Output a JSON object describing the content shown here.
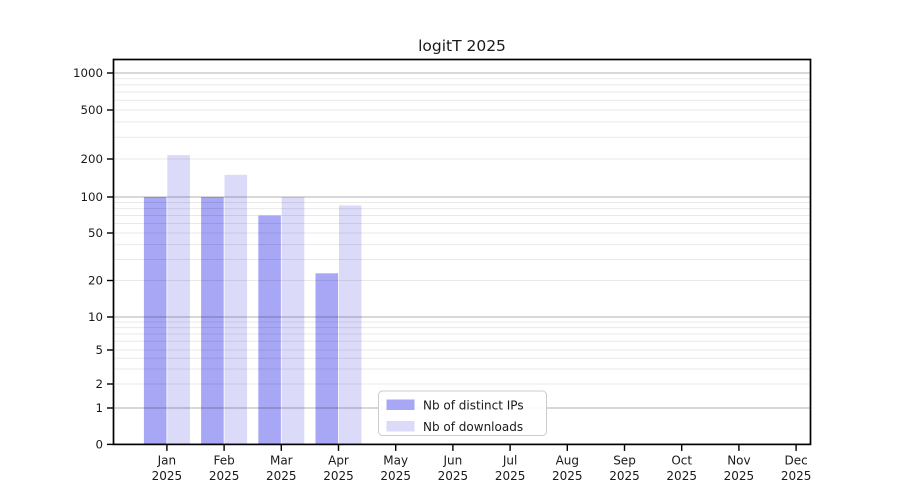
{
  "chart_data": {
    "type": "bar",
    "title": "logitT 2025",
    "year_label": "2025",
    "categories": [
      "Jan",
      "Feb",
      "Mar",
      "Apr",
      "May",
      "Jun",
      "Jul",
      "Aug",
      "Sep",
      "Oct",
      "Nov",
      "Dec"
    ],
    "series": [
      {
        "name": "Nb of distinct IPs",
        "color": "#a7a7f6",
        "values": [
          100,
          100,
          70,
          23,
          0,
          0,
          0,
          0,
          0,
          0,
          0,
          0
        ]
      },
      {
        "name": "Nb of downloads",
        "color": "#dbdbf9",
        "values": [
          215,
          150,
          100,
          85,
          0,
          0,
          0,
          0,
          0,
          0,
          0,
          0
        ]
      }
    ],
    "y_ticks": [
      0,
      1,
      2,
      5,
      10,
      20,
      50,
      100,
      200,
      500,
      1000
    ],
    "y_scale": "log-like with zero baseline",
    "ylim": [
      0,
      1400
    ],
    "grid": {
      "major_at": [
        1,
        10,
        100,
        1000
      ],
      "minor_decades": [
        1,
        10,
        100
      ],
      "orientation": "horizontal"
    },
    "legend": {
      "entries": [
        "Nb of distinct IPs",
        "Nb of downloads"
      ],
      "position": "bottom-center-inside"
    },
    "axis_color": "#000000"
  }
}
